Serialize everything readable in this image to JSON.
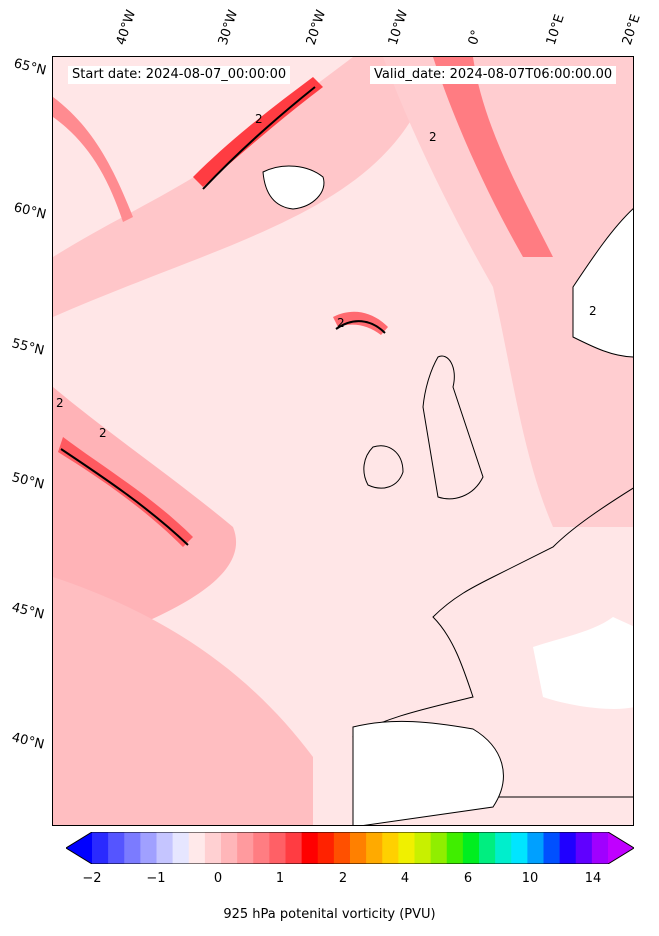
{
  "header": {
    "start_date": "Start date: 2024-08-07_00:00:00",
    "valid_date": "Valid_date: 2024-08-07T06:00:00.00"
  },
  "lat_labels": [
    "65°N",
    "60°N",
    "55°N",
    "50°N",
    "45°N",
    "40°N"
  ],
  "lon_labels": [
    "40°W",
    "30°W",
    "20°W",
    "10°W",
    "0°",
    "10°E",
    "20°E"
  ],
  "contour_label": "2",
  "colorbar": {
    "title": "925 hPa potenital vorticity (PVU)",
    "tick_labels": [
      "−2",
      "−1",
      "0",
      "1",
      "2",
      "4",
      "6",
      "10",
      "14"
    ],
    "colors": [
      "#0000ff",
      "#2a2aff",
      "#5555ff",
      "#7b7bff",
      "#a0a0ff",
      "#c5c5ff",
      "#e6e6ff",
      "#ffe9ea",
      "#ffd0d2",
      "#ffb6b9",
      "#ff9a9e",
      "#ff7d82",
      "#ff6066",
      "#ff3c42",
      "#ff0000",
      "#ff2200",
      "#ff5000",
      "#ff8000",
      "#ffaa00",
      "#ffd000",
      "#f0f000",
      "#c8f000",
      "#90ee00",
      "#40ee00",
      "#00ee20",
      "#00ee80",
      "#00eecc",
      "#00e5ff",
      "#00a0ff",
      "#0050ff",
      "#2000ff",
      "#6000ff",
      "#a000ff",
      "#c000ff"
    ]
  }
}
